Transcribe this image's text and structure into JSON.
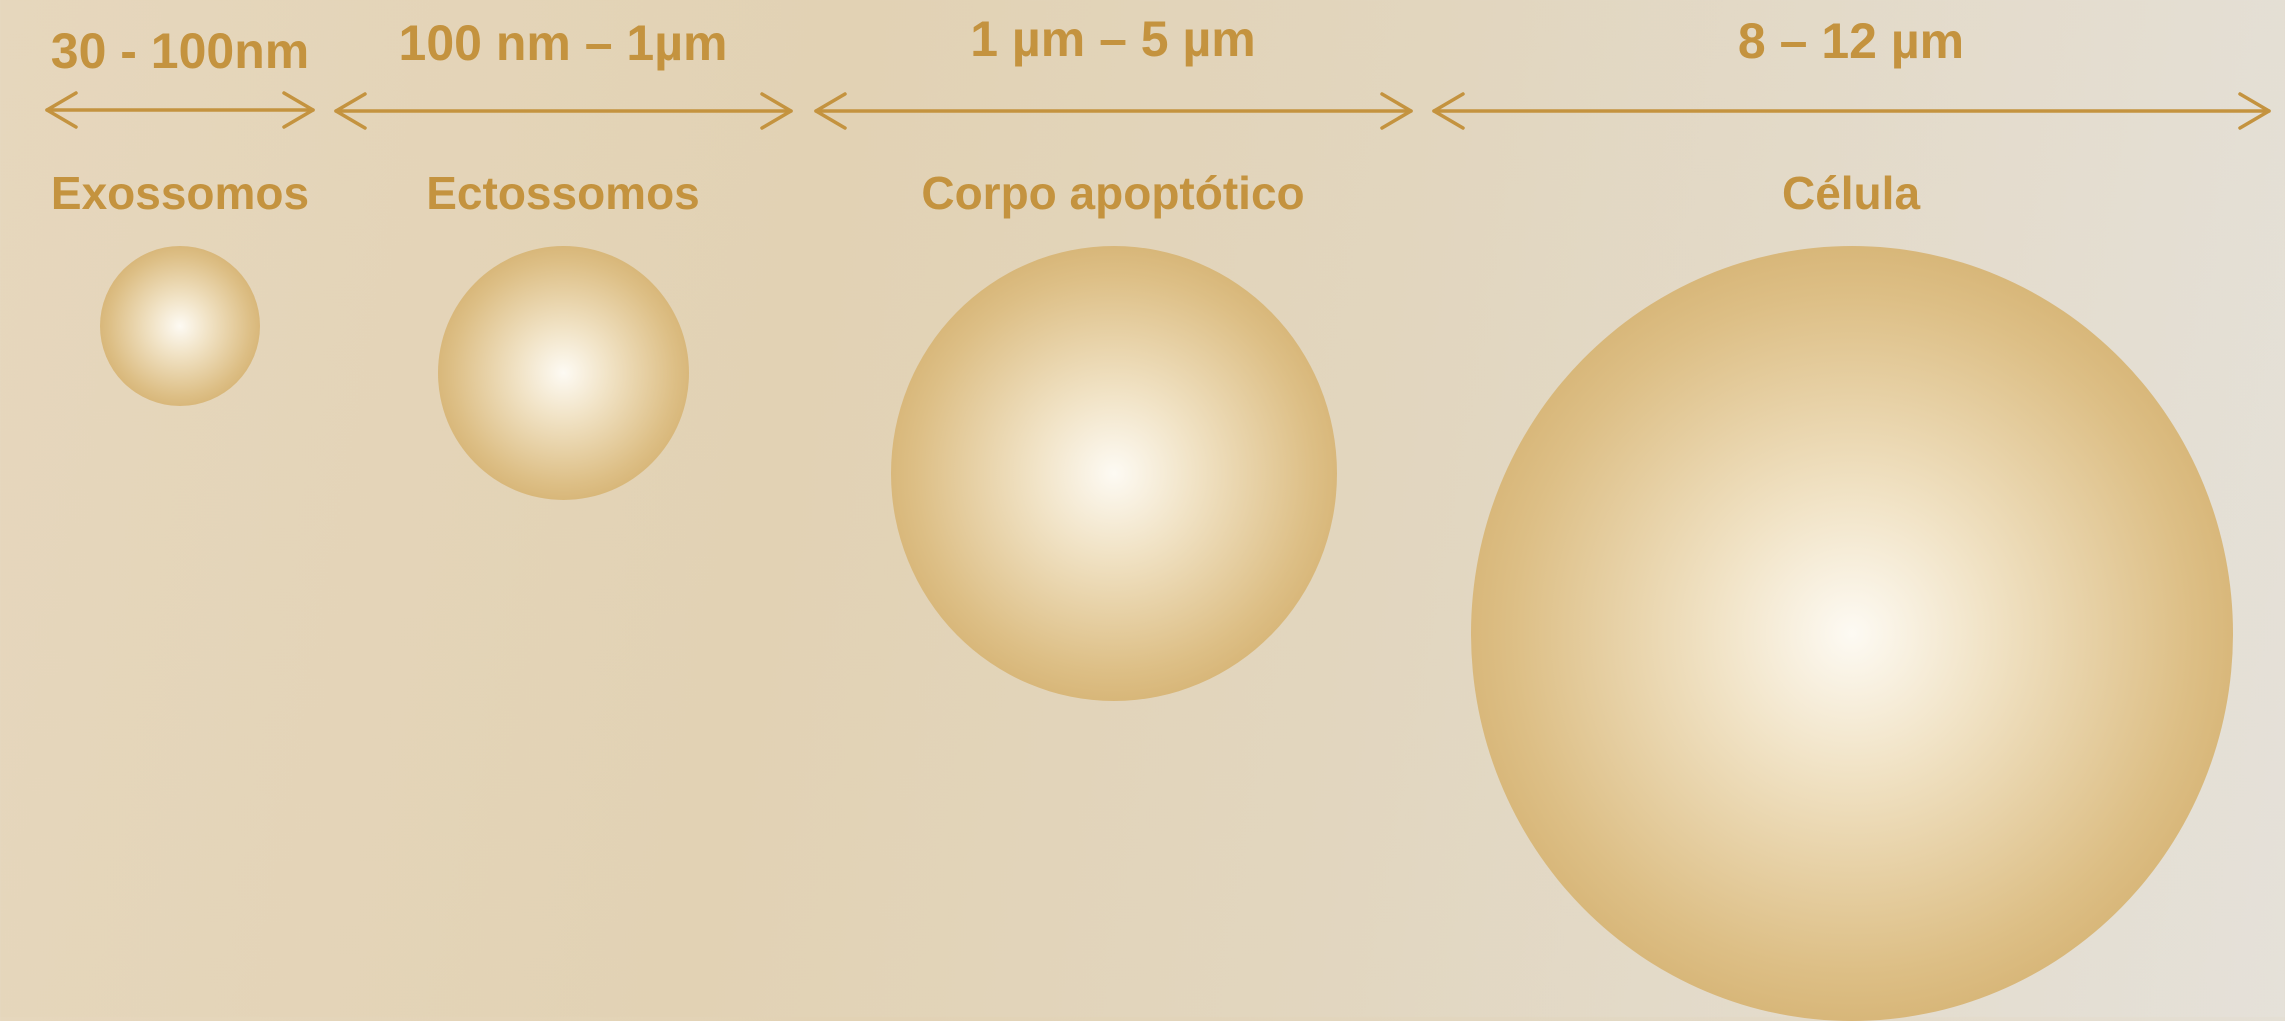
{
  "colors": {
    "accent": "#c4933f",
    "sphere_center": "#fdfaf3",
    "sphere_edge": "#c89d52"
  },
  "items": [
    {
      "range": "30 - 100nm",
      "name": "Exossomos"
    },
    {
      "range": "100 nm – 1µm",
      "name": "Ectossomos"
    },
    {
      "range": "1 µm – 5 µm",
      "name": "Corpo apoptótico"
    },
    {
      "range": "8 – 12 µm",
      "name": "Célula"
    }
  ]
}
